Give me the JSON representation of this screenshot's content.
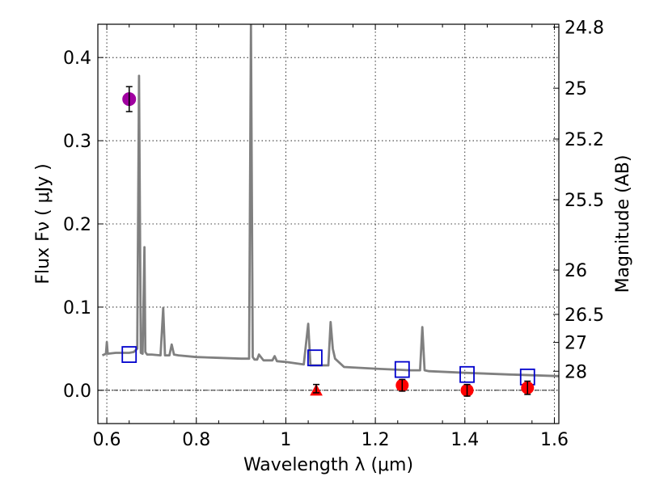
{
  "chart_data": {
    "type": "scatter",
    "xlabel": "Wavelength  λ (μm)",
    "ylabel": "Flux  Fν  ( μJy )",
    "y2label": "Magnitude (AB)",
    "xlim": [
      0.58,
      1.61
    ],
    "ylim": [
      -0.04,
      0.44
    ],
    "xticks": [
      0.6,
      0.8,
      1.0,
      1.2,
      1.4,
      1.6
    ],
    "xticklabels": [
      "0.6",
      "0.8",
      "1",
      "1.2",
      "1.4",
      "1.6"
    ],
    "yticks": [
      0.0,
      0.1,
      0.2,
      0.3,
      0.4
    ],
    "yticklabels": [
      "0.0",
      "0.1",
      "0.2",
      "0.3",
      "0.4"
    ],
    "y2ticks": [
      24.8,
      25,
      25.2,
      25.5,
      26,
      26.5,
      27,
      28
    ],
    "y2ticklabels": [
      "24.8",
      "25",
      "25.2",
      "25.5",
      "26",
      "26.5",
      "27",
      "28"
    ],
    "grid": true,
    "colors": {
      "spectrum": "#808080",
      "model_photometry": "#0000cc",
      "detection": "#a000a0",
      "measurement": "#ff0000",
      "errorbar": "#000000"
    },
    "spectrum": {
      "x": [
        0.59,
        0.598,
        0.6,
        0.602,
        0.62,
        0.64,
        0.65,
        0.66,
        0.668,
        0.672,
        0.676,
        0.68,
        0.684,
        0.686,
        0.69,
        0.7,
        0.72,
        0.726,
        0.73,
        0.74,
        0.745,
        0.75,
        0.76,
        0.8,
        0.85,
        0.9,
        0.918,
        0.922,
        0.926,
        0.93,
        0.936,
        0.94,
        0.95,
        0.97,
        0.975,
        0.98,
        1.0,
        1.04,
        1.05,
        1.055,
        1.06,
        1.08,
        1.095,
        1.1,
        1.105,
        1.11,
        1.13,
        1.2,
        1.28,
        1.3,
        1.305,
        1.31,
        1.32,
        1.4,
        1.5,
        1.61
      ],
      "y": [
        0.042,
        0.044,
        0.058,
        0.044,
        0.045,
        0.045,
        0.045,
        0.046,
        0.05,
        0.378,
        0.045,
        0.044,
        0.172,
        0.046,
        0.043,
        0.043,
        0.042,
        0.099,
        0.042,
        0.042,
        0.055,
        0.043,
        0.042,
        0.04,
        0.039,
        0.038,
        0.038,
        0.44,
        0.04,
        0.037,
        0.037,
        0.043,
        0.036,
        0.036,
        0.041,
        0.035,
        0.034,
        0.031,
        0.08,
        0.03,
        0.03,
        0.03,
        0.03,
        0.082,
        0.05,
        0.038,
        0.028,
        0.026,
        0.024,
        0.024,
        0.076,
        0.024,
        0.023,
        0.021,
        0.019,
        0.017
      ]
    },
    "model_photometry": {
      "marker": "open-square",
      "x": [
        0.65,
        1.065,
        1.26,
        1.405,
        1.54
      ],
      "y": [
        0.043,
        0.039,
        0.025,
        0.019,
        0.016
      ]
    },
    "detection": {
      "marker": "circle",
      "x": [
        0.65
      ],
      "y": [
        0.35
      ],
      "yerr": [
        0.015
      ]
    },
    "measurements": {
      "marker": "circle",
      "x": [
        1.26,
        1.405,
        1.54
      ],
      "y": [
        0.006,
        0.0,
        0.003
      ],
      "yerr": [
        0.007,
        0.007,
        0.008
      ]
    },
    "upper_limit": {
      "marker": "triangle",
      "x": [
        1.068
      ],
      "y": [
        -0.001
      ],
      "err_center": 0.002,
      "err_half": 0.005
    }
  }
}
